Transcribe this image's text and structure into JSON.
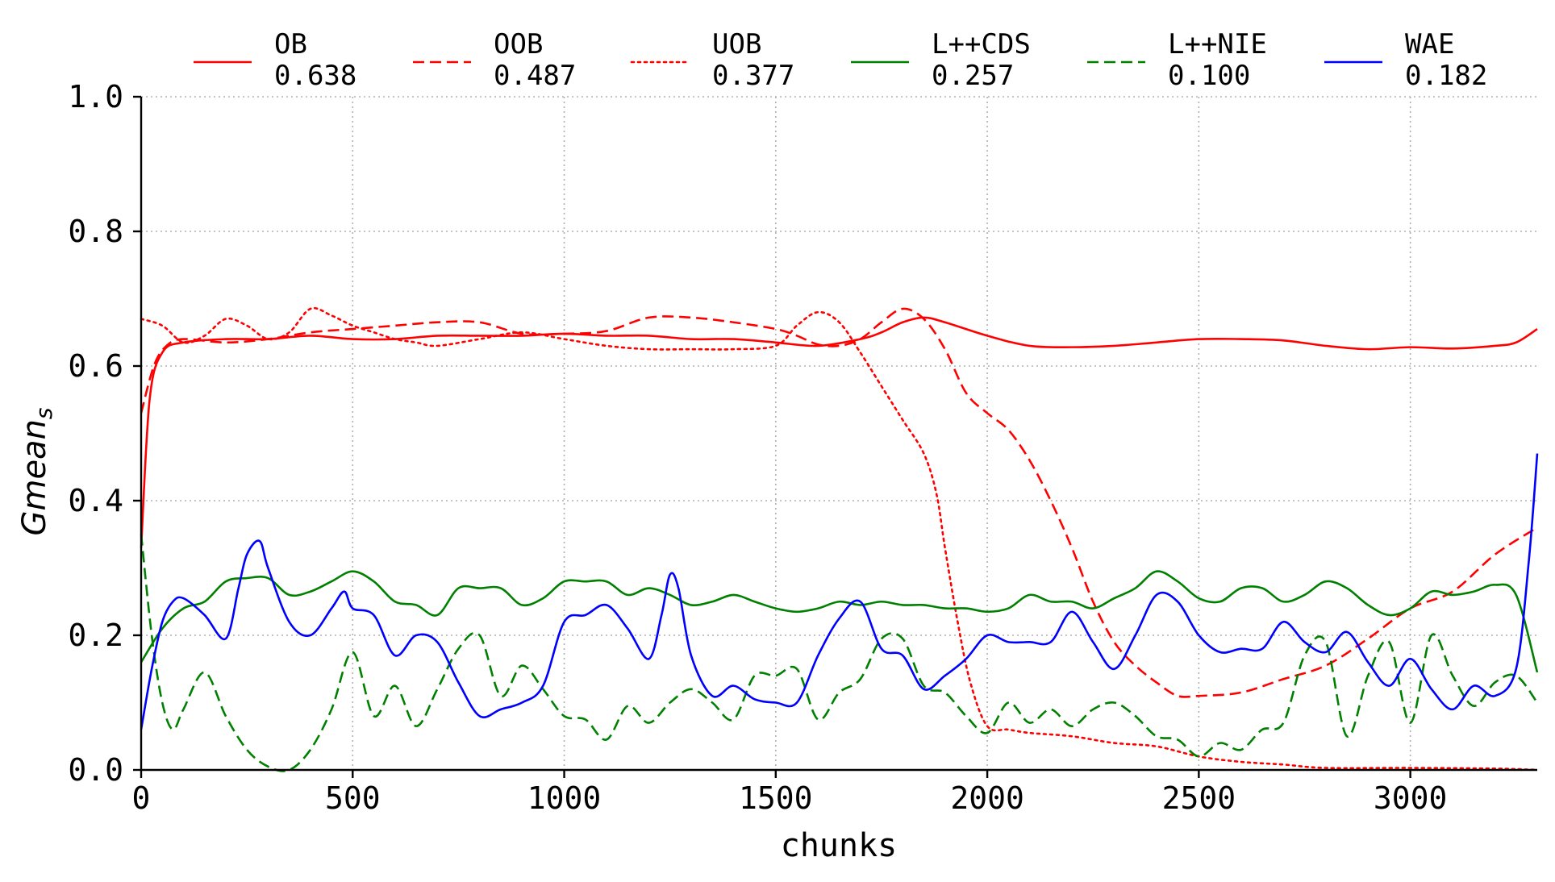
{
  "chart_data": {
    "type": "line",
    "title": "",
    "xlabel": "chunks",
    "ylabel": "Gmean",
    "ylabel_subscript": "s",
    "xlim": [
      0,
      3300
    ],
    "ylim": [
      0,
      1.0
    ],
    "xticks": [
      0,
      500,
      1000,
      1500,
      2000,
      2500,
      3000
    ],
    "xtick_labels": [
      "0",
      "500",
      "1000",
      "1500",
      "2000",
      "2500",
      "3000"
    ],
    "yticks": [
      0,
      0.2,
      0.4,
      0.6,
      0.8,
      1.0
    ],
    "ytick_labels": [
      "0.0",
      "0.2",
      "0.4",
      "0.6",
      "0.8",
      "1.0"
    ],
    "grid": true,
    "legend_position": "top",
    "series": [
      {
        "name": "OB",
        "score": "0.638",
        "color": "#ff0000",
        "style": "solid",
        "x": [
          0,
          20,
          50,
          100,
          200,
          300,
          400,
          500,
          600,
          700,
          800,
          900,
          1000,
          1100,
          1200,
          1300,
          1400,
          1500,
          1600,
          1700,
          1750,
          1800,
          1850,
          1900,
          2000,
          2100,
          2200,
          2300,
          2400,
          2500,
          2600,
          2700,
          2800,
          2900,
          3000,
          3100,
          3200,
          3250,
          3300
        ],
        "y": [
          0.33,
          0.55,
          0.62,
          0.635,
          0.64,
          0.64,
          0.645,
          0.64,
          0.64,
          0.645,
          0.645,
          0.645,
          0.648,
          0.645,
          0.645,
          0.64,
          0.64,
          0.635,
          0.63,
          0.64,
          0.65,
          0.665,
          0.672,
          0.665,
          0.645,
          0.63,
          0.628,
          0.63,
          0.635,
          0.64,
          0.64,
          0.638,
          0.63,
          0.625,
          0.628,
          0.626,
          0.63,
          0.635,
          0.655
        ]
      },
      {
        "name": "OOB",
        "score": "0.487",
        "color": "#ff0000",
        "style": "dashed",
        "x": [
          0,
          30,
          60,
          100,
          200,
          300,
          400,
          500,
          600,
          700,
          800,
          900,
          1000,
          1100,
          1200,
          1300,
          1400,
          1500,
          1550,
          1600,
          1650,
          1700,
          1750,
          1800,
          1850,
          1900,
          1950,
          2000,
          2050,
          2100,
          2150,
          2200,
          2250,
          2300,
          2350,
          2400,
          2450,
          2500,
          2600,
          2700,
          2800,
          2900,
          3000,
          3100,
          3200,
          3300
        ],
        "y": [
          0.53,
          0.6,
          0.63,
          0.64,
          0.635,
          0.64,
          0.65,
          0.655,
          0.66,
          0.665,
          0.665,
          0.648,
          0.648,
          0.652,
          0.672,
          0.672,
          0.665,
          0.655,
          0.645,
          0.632,
          0.63,
          0.64,
          0.665,
          0.685,
          0.67,
          0.625,
          0.56,
          0.53,
          0.505,
          0.46,
          0.4,
          0.33,
          0.25,
          0.19,
          0.155,
          0.13,
          0.11,
          0.11,
          0.115,
          0.135,
          0.155,
          0.195,
          0.24,
          0.265,
          0.32,
          0.36
        ]
      },
      {
        "name": "UOB",
        "score": "0.377",
        "color": "#ff0000",
        "style": "dotted",
        "x": [
          0,
          50,
          100,
          150,
          200,
          250,
          300,
          350,
          400,
          450,
          500,
          550,
          600,
          650,
          700,
          800,
          900,
          1000,
          1100,
          1200,
          1300,
          1400,
          1500,
          1550,
          1600,
          1650,
          1700,
          1750,
          1800,
          1850,
          1880,
          1900,
          1930,
          1960,
          2000,
          2050,
          2100,
          2200,
          2300,
          2400,
          2500,
          2600,
          2700,
          2800,
          3000,
          3200,
          3300
        ],
        "y": [
          0.67,
          0.66,
          0.635,
          0.645,
          0.67,
          0.66,
          0.64,
          0.65,
          0.685,
          0.675,
          0.66,
          0.65,
          0.64,
          0.635,
          0.63,
          0.64,
          0.65,
          0.64,
          0.63,
          0.625,
          0.625,
          0.625,
          0.63,
          0.66,
          0.68,
          0.665,
          0.62,
          0.57,
          0.52,
          0.47,
          0.41,
          0.33,
          0.22,
          0.13,
          0.065,
          0.06,
          0.055,
          0.05,
          0.04,
          0.035,
          0.02,
          0.012,
          0.008,
          0.003,
          0.003,
          0.002,
          0.0
        ]
      },
      {
        "name": "L++CDS",
        "score": "0.257",
        "color": "#008000",
        "style": "solid",
        "x": [
          0,
          50,
          100,
          150,
          200,
          250,
          300,
          350,
          400,
          450,
          500,
          550,
          600,
          650,
          700,
          750,
          800,
          850,
          900,
          950,
          1000,
          1050,
          1100,
          1150,
          1200,
          1250,
          1300,
          1350,
          1400,
          1450,
          1500,
          1550,
          1600,
          1650,
          1700,
          1750,
          1800,
          1850,
          1900,
          1950,
          2000,
          2050,
          2100,
          2150,
          2200,
          2250,
          2300,
          2350,
          2400,
          2450,
          2500,
          2550,
          2600,
          2650,
          2700,
          2750,
          2800,
          2850,
          2900,
          2950,
          3000,
          3050,
          3100,
          3150,
          3200,
          3250,
          3300
        ],
        "y": [
          0.16,
          0.21,
          0.24,
          0.25,
          0.28,
          0.285,
          0.285,
          0.26,
          0.265,
          0.28,
          0.295,
          0.28,
          0.25,
          0.245,
          0.23,
          0.27,
          0.27,
          0.27,
          0.245,
          0.255,
          0.28,
          0.28,
          0.28,
          0.26,
          0.27,
          0.26,
          0.245,
          0.25,
          0.26,
          0.25,
          0.24,
          0.235,
          0.24,
          0.25,
          0.245,
          0.25,
          0.245,
          0.245,
          0.24,
          0.24,
          0.235,
          0.24,
          0.26,
          0.25,
          0.25,
          0.24,
          0.255,
          0.27,
          0.295,
          0.28,
          0.255,
          0.25,
          0.27,
          0.27,
          0.25,
          0.26,
          0.28,
          0.27,
          0.245,
          0.23,
          0.24,
          0.265,
          0.26,
          0.265,
          0.275,
          0.26,
          0.145
        ]
      },
      {
        "name": "L++NIE",
        "score": "0.100",
        "color": "#008000",
        "style": "dashed",
        "x": [
          0,
          25,
          50,
          75,
          100,
          150,
          200,
          250,
          300,
          350,
          400,
          450,
          500,
          550,
          600,
          650,
          700,
          750,
          800,
          850,
          900,
          950,
          1000,
          1050,
          1100,
          1150,
          1200,
          1250,
          1300,
          1350,
          1400,
          1450,
          1500,
          1550,
          1600,
          1650,
          1700,
          1750,
          1800,
          1850,
          1900,
          1950,
          2000,
          2050,
          2100,
          2150,
          2200,
          2250,
          2300,
          2350,
          2400,
          2450,
          2500,
          2550,
          2600,
          2650,
          2700,
          2750,
          2800,
          2850,
          2900,
          2950,
          3000,
          3050,
          3100,
          3150,
          3200,
          3250,
          3300
        ],
        "y": [
          0.35,
          0.2,
          0.1,
          0.06,
          0.09,
          0.145,
          0.08,
          0.03,
          0.005,
          0.0,
          0.03,
          0.09,
          0.175,
          0.08,
          0.125,
          0.065,
          0.12,
          0.18,
          0.2,
          0.11,
          0.155,
          0.12,
          0.08,
          0.075,
          0.045,
          0.095,
          0.07,
          0.1,
          0.12,
          0.1,
          0.075,
          0.14,
          0.14,
          0.15,
          0.075,
          0.115,
          0.135,
          0.195,
          0.195,
          0.125,
          0.115,
          0.08,
          0.055,
          0.1,
          0.07,
          0.09,
          0.065,
          0.09,
          0.1,
          0.08,
          0.05,
          0.045,
          0.02,
          0.04,
          0.03,
          0.06,
          0.07,
          0.17,
          0.19,
          0.05,
          0.14,
          0.19,
          0.07,
          0.2,
          0.14,
          0.095,
          0.13,
          0.14,
          0.1
        ]
      },
      {
        "name": "WAE",
        "score": "0.182",
        "color": "#0000ff",
        "style": "solid",
        "x": [
          0,
          25,
          50,
          75,
          100,
          150,
          200,
          230,
          250,
          280,
          300,
          350,
          400,
          450,
          480,
          500,
          550,
          600,
          650,
          700,
          750,
          800,
          850,
          900,
          950,
          1000,
          1050,
          1100,
          1150,
          1200,
          1230,
          1250,
          1270,
          1300,
          1350,
          1400,
          1450,
          1500,
          1550,
          1600,
          1650,
          1700,
          1750,
          1800,
          1850,
          1900,
          1950,
          2000,
          2050,
          2100,
          2150,
          2200,
          2250,
          2300,
          2350,
          2400,
          2450,
          2500,
          2550,
          2600,
          2650,
          2700,
          2750,
          2800,
          2850,
          2900,
          2950,
          3000,
          3050,
          3100,
          3150,
          3200,
          3250,
          3280,
          3300
        ],
        "y": [
          0.06,
          0.15,
          0.22,
          0.25,
          0.255,
          0.23,
          0.195,
          0.27,
          0.32,
          0.34,
          0.3,
          0.22,
          0.2,
          0.24,
          0.265,
          0.24,
          0.23,
          0.17,
          0.2,
          0.19,
          0.13,
          0.08,
          0.09,
          0.1,
          0.125,
          0.22,
          0.23,
          0.245,
          0.21,
          0.165,
          0.23,
          0.29,
          0.27,
          0.17,
          0.11,
          0.125,
          0.105,
          0.1,
          0.1,
          0.17,
          0.225,
          0.25,
          0.18,
          0.17,
          0.12,
          0.14,
          0.165,
          0.2,
          0.19,
          0.19,
          0.19,
          0.235,
          0.19,
          0.15,
          0.2,
          0.26,
          0.25,
          0.2,
          0.175,
          0.18,
          0.18,
          0.22,
          0.19,
          0.175,
          0.205,
          0.16,
          0.125,
          0.165,
          0.12,
          0.09,
          0.125,
          0.11,
          0.15,
          0.31,
          0.47
        ]
      }
    ]
  }
}
